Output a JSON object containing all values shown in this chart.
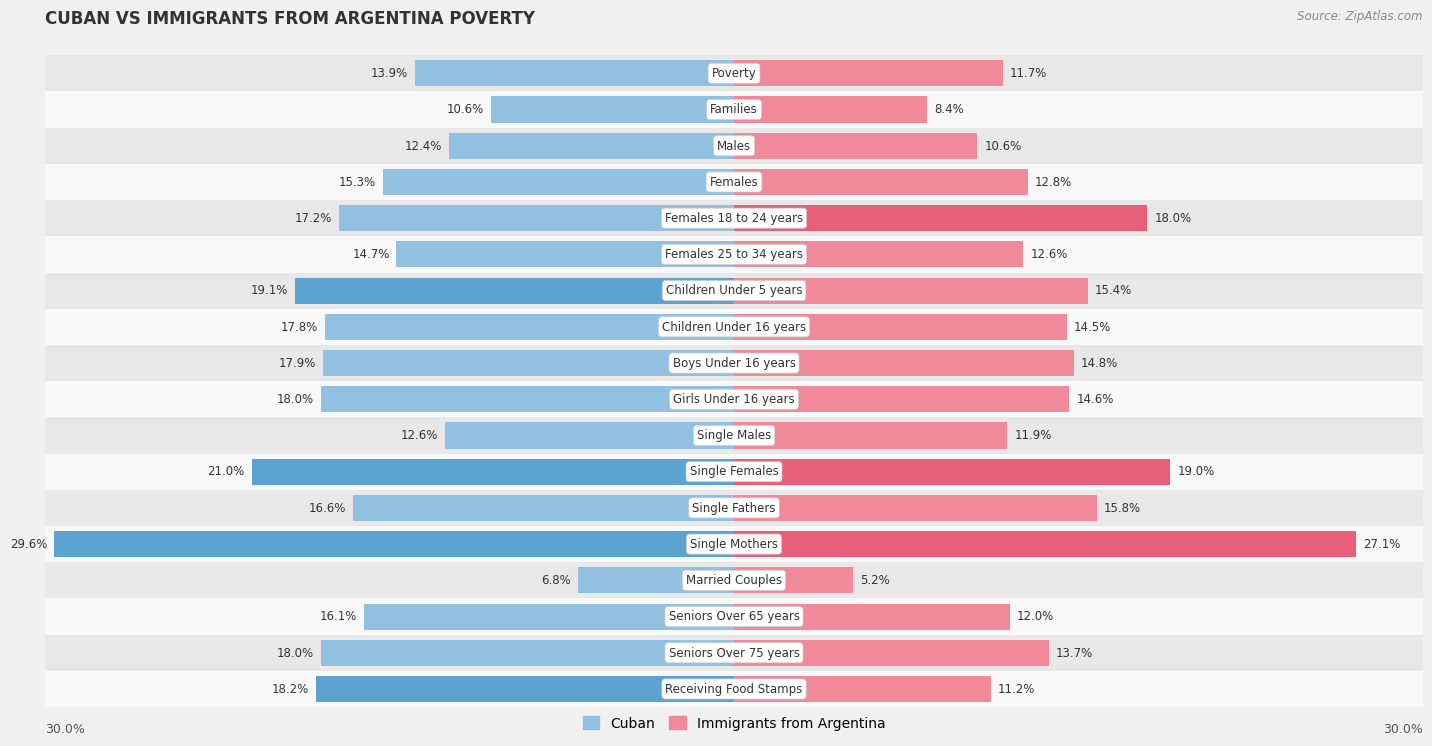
{
  "title": "CUBAN VS IMMIGRANTS FROM ARGENTINA POVERTY",
  "source": "Source: ZipAtlas.com",
  "categories": [
    "Poverty",
    "Families",
    "Males",
    "Females",
    "Females 18 to 24 years",
    "Females 25 to 34 years",
    "Children Under 5 years",
    "Children Under 16 years",
    "Boys Under 16 years",
    "Girls Under 16 years",
    "Single Males",
    "Single Females",
    "Single Fathers",
    "Single Mothers",
    "Married Couples",
    "Seniors Over 65 years",
    "Seniors Over 75 years",
    "Receiving Food Stamps"
  ],
  "cuban_values": [
    13.9,
    10.6,
    12.4,
    15.3,
    17.2,
    14.7,
    19.1,
    17.8,
    17.9,
    18.0,
    12.6,
    21.0,
    16.6,
    29.6,
    6.8,
    16.1,
    18.0,
    18.2
  ],
  "argentina_values": [
    11.7,
    8.4,
    10.6,
    12.8,
    18.0,
    12.6,
    15.4,
    14.5,
    14.8,
    14.6,
    11.9,
    19.0,
    15.8,
    27.1,
    5.2,
    12.0,
    13.7,
    11.2
  ],
  "cuban_color": "#92c0e0",
  "argentina_color": "#f0899a",
  "cuban_highlight_indices": [
    6,
    11,
    13,
    17
  ],
  "argentina_highlight_indices": [
    4,
    11,
    13
  ],
  "cuban_highlight_color": "#5ba3d0",
  "argentina_highlight_color": "#e85f7a",
  "bar_height": 0.72,
  "background_color": "#f0f0f0",
  "row_even_color": "#e8e8e8",
  "row_odd_color": "#f8f8f8",
  "xlim": 30.0,
  "legend_cuban": "Cuban",
  "legend_argentina": "Immigrants from Argentina",
  "label_fontsize": 8.5,
  "cat_fontsize": 8.5,
  "title_fontsize": 12,
  "source_fontsize": 8.5
}
